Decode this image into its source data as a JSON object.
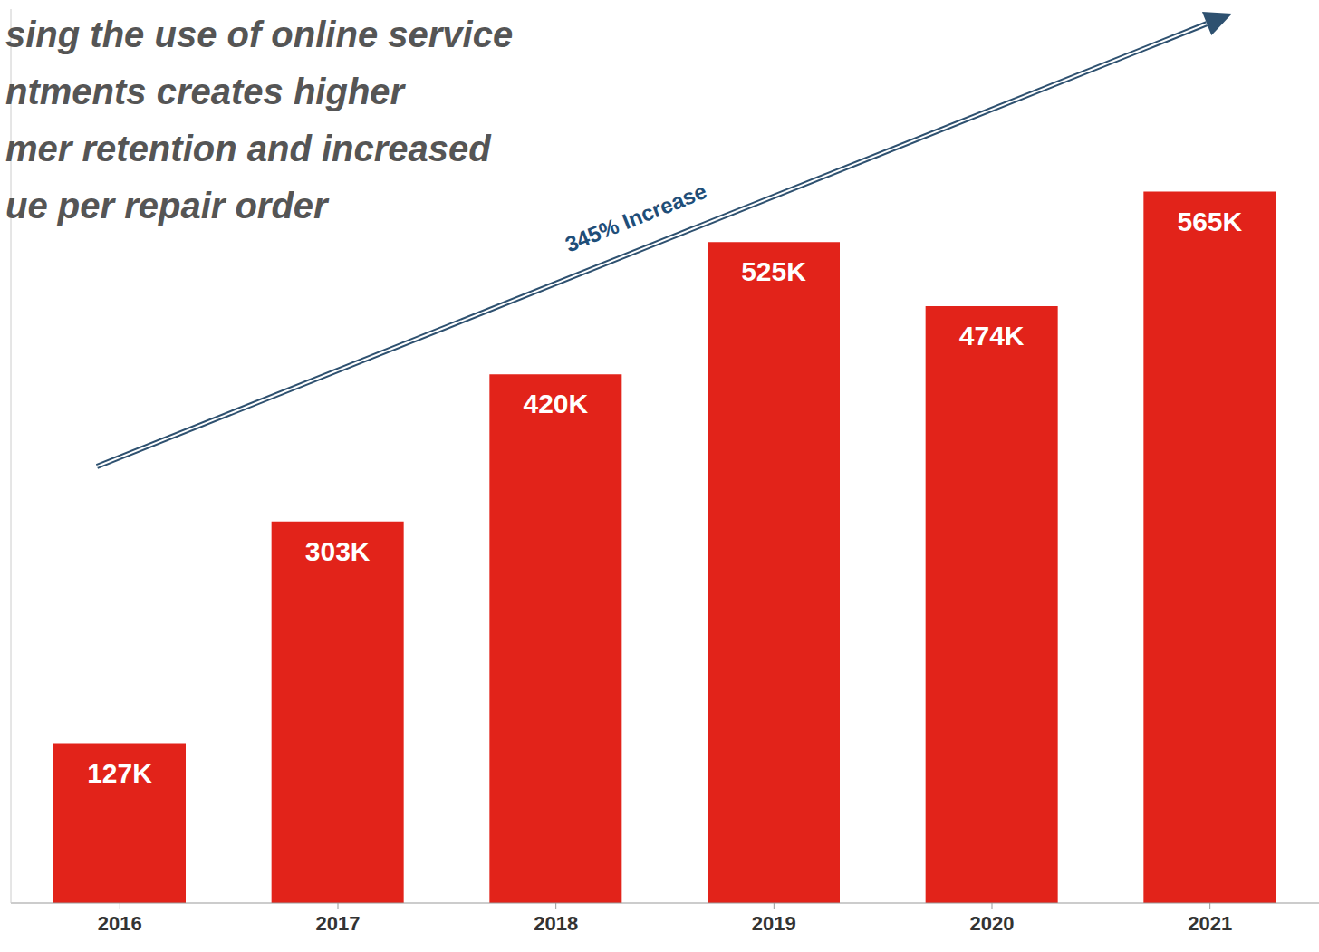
{
  "chart_data": {
    "type": "bar",
    "title": "sing the use of online service\nntments creates higher\nmer retention and increased\nue per repair order",
    "categories": [
      "2016",
      "2017",
      "2018",
      "2019",
      "2020",
      "2021"
    ],
    "values": [
      127000,
      303000,
      420000,
      525000,
      474000,
      565000
    ],
    "value_labels": [
      "127K",
      "303K",
      "420K",
      "525K",
      "474K",
      "565K"
    ],
    "data_labels": true,
    "color": "#e2231a",
    "ylim": [
      0,
      710000
    ],
    "grid": false,
    "tick_labels": "x",
    "annotations": [
      {
        "text": "345% Increase"
      }
    ]
  }
}
